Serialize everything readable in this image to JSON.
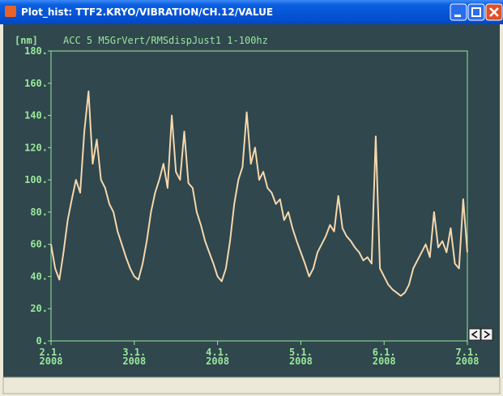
{
  "window": {
    "title": "Plot_hist: TTF2.KRYO/VIBRATION/CH.12/VALUE"
  },
  "chart_data": {
    "type": "line",
    "title": "ACC 5 M5GrVert/RMSdispJust1 1-100hz",
    "ylabel": "[nm]",
    "color": "#f7d7ac",
    "x": [
      2.0,
      2.05,
      2.1,
      2.15,
      2.2,
      2.25,
      2.3,
      2.35,
      2.4,
      2.45,
      2.5,
      2.55,
      2.6,
      2.65,
      2.7,
      2.75,
      2.8,
      2.85,
      2.9,
      2.95,
      3.0,
      3.05,
      3.1,
      3.15,
      3.2,
      3.25,
      3.3,
      3.35,
      3.4,
      3.45,
      3.5,
      3.55,
      3.6,
      3.65,
      3.7,
      3.75,
      3.8,
      3.85,
      3.9,
      3.95,
      4.0,
      4.05,
      4.1,
      4.15,
      4.2,
      4.25,
      4.3,
      4.35,
      4.4,
      4.45,
      4.5,
      4.55,
      4.6,
      4.65,
      4.7,
      4.75,
      4.8,
      4.85,
      4.9,
      4.95,
      5.0,
      5.05,
      5.1,
      5.15,
      5.2,
      5.25,
      5.3,
      5.35,
      5.4,
      5.45,
      5.5,
      5.55,
      5.6,
      5.65,
      5.7,
      5.75,
      5.8,
      5.85,
      5.9,
      5.95,
      6.0,
      6.05,
      6.1,
      6.15,
      6.2,
      6.25,
      6.3,
      6.35,
      6.4,
      6.45,
      6.5,
      6.55,
      6.6,
      6.65,
      6.7,
      6.75,
      6.8,
      6.85,
      6.9,
      6.95,
      7.0
    ],
    "values": [
      60,
      45,
      38,
      55,
      75,
      88,
      100,
      92,
      130,
      155,
      110,
      125,
      100,
      95,
      85,
      80,
      68,
      60,
      52,
      45,
      40,
      38,
      48,
      62,
      80,
      92,
      100,
      110,
      95,
      140,
      105,
      100,
      130,
      98,
      95,
      80,
      72,
      62,
      55,
      48,
      40,
      37,
      45,
      62,
      85,
      100,
      108,
      142,
      110,
      120,
      100,
      105,
      95,
      92,
      85,
      88,
      75,
      80,
      70,
      62,
      55,
      48,
      40,
      45,
      55,
      60,
      65,
      72,
      68,
      90,
      70,
      65,
      62,
      58,
      55,
      50,
      52,
      48,
      127,
      45,
      40,
      35,
      32,
      30,
      28,
      30,
      35,
      45,
      50,
      55,
      60,
      52,
      80,
      58,
      62,
      55,
      70,
      48,
      45,
      88,
      55
    ],
    "xlim": [
      2,
      7
    ],
    "ylim": [
      0,
      180
    ],
    "xticks": [
      {
        "value": 2,
        "label": "2.1.\n2008"
      },
      {
        "value": 3,
        "label": "3.1.\n2008"
      },
      {
        "value": 4,
        "label": "4.1.\n2008"
      },
      {
        "value": 5,
        "label": "5.1.\n2008"
      },
      {
        "value": 6,
        "label": "6.1.\n2008"
      },
      {
        "value": 7,
        "label": "7.1.\n2008"
      }
    ],
    "yticks": [
      {
        "value": 0,
        "label": "0."
      },
      {
        "value": 20,
        "label": "20."
      },
      {
        "value": 40,
        "label": "40."
      },
      {
        "value": 60,
        "label": "60."
      },
      {
        "value": 80,
        "label": "80."
      },
      {
        "value": 100,
        "label": "100."
      },
      {
        "value": 120,
        "label": "120."
      },
      {
        "value": 140,
        "label": "140."
      },
      {
        "value": 160,
        "label": "160."
      },
      {
        "value": 180,
        "label": "180."
      }
    ]
  }
}
